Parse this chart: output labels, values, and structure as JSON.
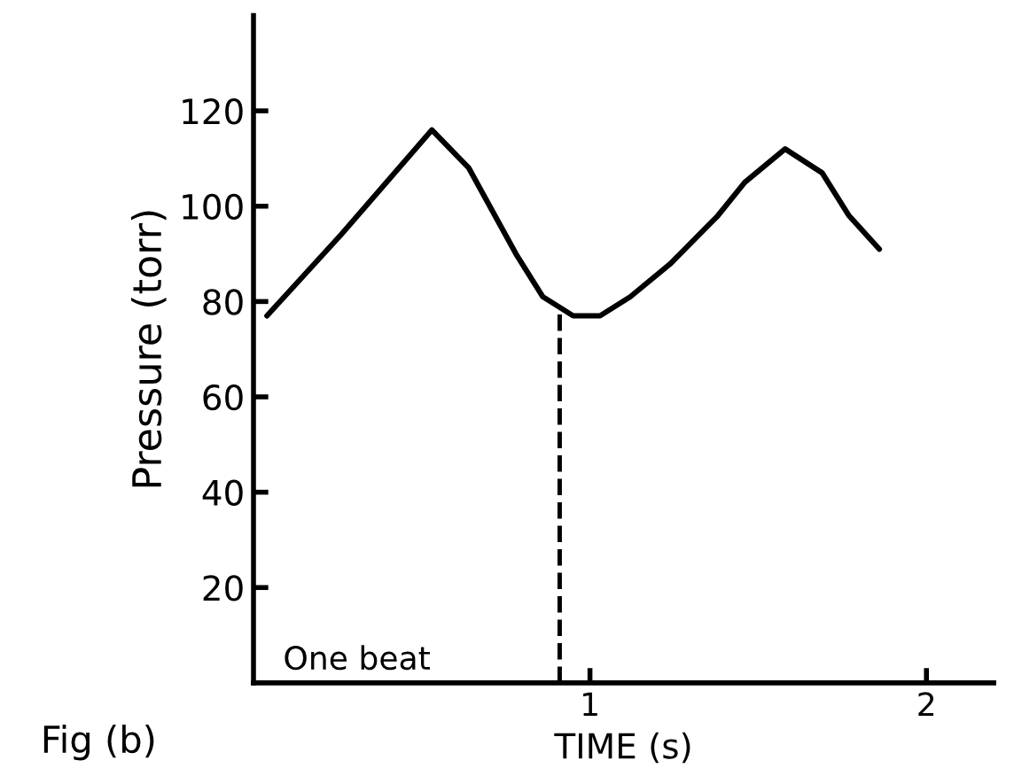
{
  "chart_data": {
    "type": "line",
    "xlabel": "TIME (s)",
    "ylabel": "Pressure (torr)",
    "x": [
      0.04,
      0.26,
      0.53,
      0.64,
      0.78,
      0.86,
      0.95,
      1.03,
      1.12,
      1.24,
      1.38,
      1.46,
      1.58,
      1.69,
      1.77,
      1.86
    ],
    "series": [
      {
        "color": "#000000",
        "values": [
          77,
          94,
          116,
          108,
          90,
          81,
          77,
          77,
          81,
          88,
          98,
          105,
          112,
          107,
          98,
          91
        ]
      }
    ],
    "xlim": [
      0,
      2.2
    ],
    "ylim": [
      0,
      140
    ],
    "xticks": [
      1,
      2
    ],
    "yticks": [
      20,
      40,
      60,
      80,
      100,
      120
    ],
    "ref_lines": [
      {
        "axis": "x",
        "value": 0.91,
        "color": "#000000",
        "line_style": "dashed"
      }
    ],
    "annotations": [
      "One beat",
      "Fig (b)"
    ],
    "grid": false,
    "legend": false,
    "marker": "none",
    "line_style": "solid"
  }
}
